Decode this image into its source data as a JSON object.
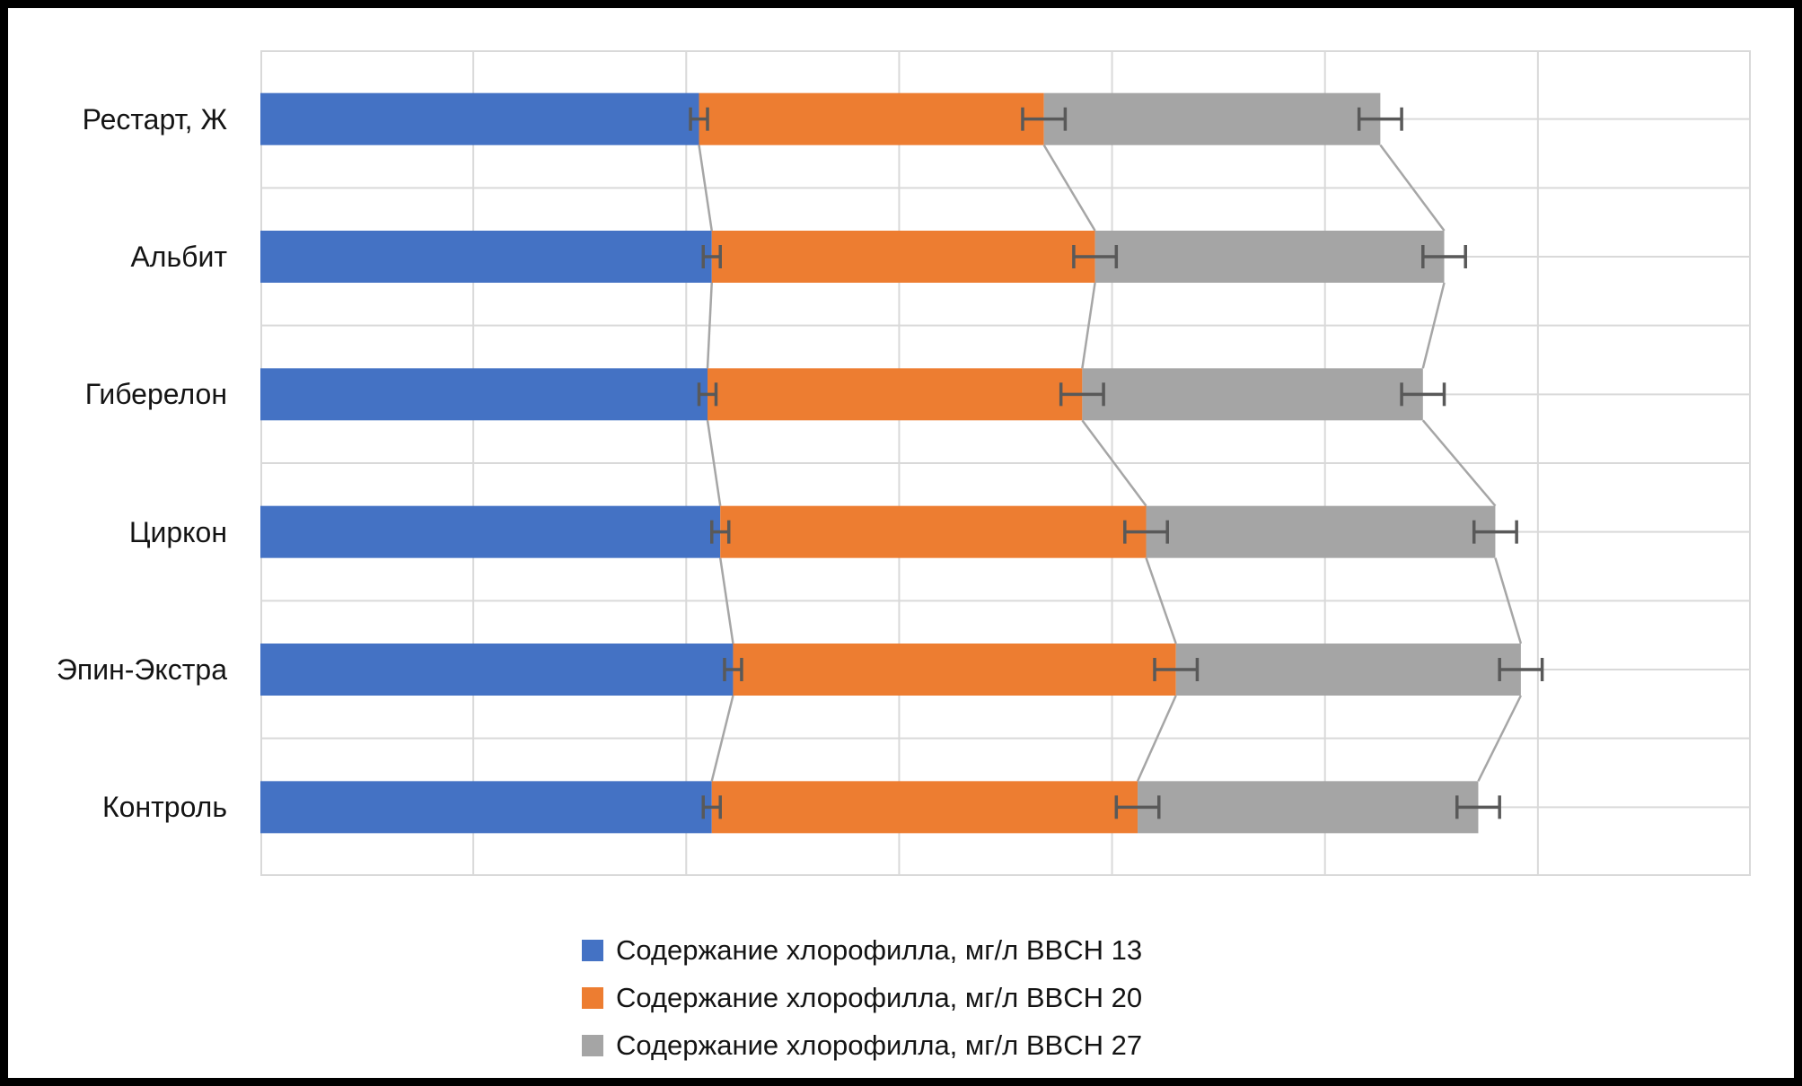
{
  "chart_data": {
    "type": "bar",
    "orientation": "horizontal",
    "stacked": true,
    "title": "",
    "xlabel": "",
    "ylabel": "",
    "categories": [
      "Рестарт, Ж",
      "Альбит",
      "Гиберелон",
      "Циркон",
      "Эпин-Экстра",
      "Контроль"
    ],
    "series": [
      {
        "name": "Содержание хлорофилла, мг/л BBCH 13",
        "color": "#4472C4",
        "values": [
          1.03,
          1.06,
          1.05,
          1.08,
          1.11,
          1.06
        ],
        "error_plus_minus": 0.02
      },
      {
        "name": "Содержание хлорофилла, мг/л BBCH 20",
        "color": "#ED7D31",
        "values": [
          0.81,
          0.9,
          0.88,
          1.0,
          1.04,
          1.0
        ],
        "error_plus_minus": 0.05
      },
      {
        "name": "Содержание хлорофилла, мг/л BBCH 27",
        "color": "#A5A5A5",
        "values": [
          0.79,
          0.82,
          0.8,
          0.82,
          0.81,
          0.8
        ],
        "error_plus_minus": 0.05
      }
    ],
    "xlim": [
      0,
      3.5
    ],
    "x_gridline_step": 0.5,
    "x_tick_labels_visible": false,
    "y_tick_labels_visible": true,
    "grid": true,
    "error_bars": true,
    "series_connector_lines": true,
    "legend_position": "bottom",
    "colors": {
      "gridline": "#D9D9D9",
      "error_bar": "#595959",
      "connector_line": "#A6A6A6",
      "text": "#141414",
      "plot_background": "#FFFFFF",
      "outer_border": "#000000"
    }
  }
}
